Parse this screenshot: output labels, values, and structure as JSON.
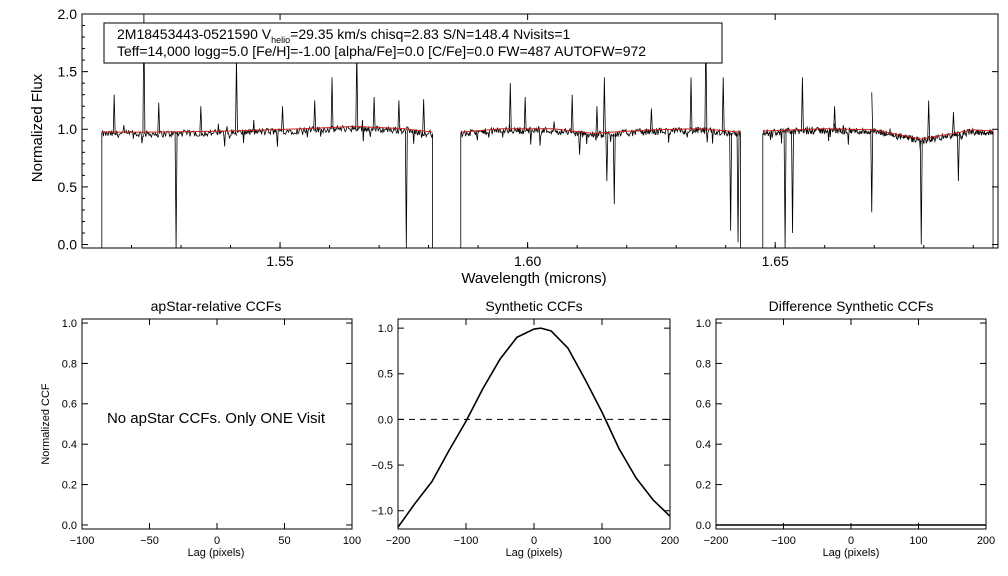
{
  "figure": {
    "spectrum_panel": {
      "ylabel": "Normalized Flux",
      "xlabel": "Wavelength (microns)",
      "xlim": [
        1.51,
        1.695
      ],
      "ylim": [
        -0.03,
        2.0
      ],
      "xticks": [
        1.55,
        1.6,
        1.65
      ],
      "xtick_labels": [
        "1.55",
        "1.60",
        "1.65"
      ],
      "yticks": [
        0.0,
        0.5,
        1.0,
        1.5,
        2.0
      ],
      "ytick_labels": [
        "0.0",
        "0.5",
        "1.0",
        "1.5",
        "2.0"
      ],
      "info_line1": "2M18453443-0521590  V",
      "info_line1_sub": "helio",
      "info_line1_rest": "=29.35 km/s  chisq=2.83  S/N=148.4  Nvisits=1",
      "info_line2": "Teff=14,000 logg=5.0 [Fe/H]=-1.00 [alpha/Fe]=0.0 [C/Fe]=0.0 FW=487 AUTOFW=972"
    },
    "ccf_panels": [
      {
        "title": "apStar-relative CCFs",
        "xlabel": "Lag (pixels)",
        "ylabel": "Normalized CCF",
        "xticks": [
          -100,
          -50,
          0,
          50,
          100
        ],
        "xtick_labels": [
          "−100",
          "−50",
          "0",
          "50",
          "100"
        ],
        "yticks": [
          0.0,
          0.2,
          0.4,
          0.6,
          0.8,
          1.0
        ],
        "ytick_labels": [
          "0.0",
          "0.2",
          "0.4",
          "0.6",
          "0.8",
          "1.0"
        ],
        "message": "No apStar CCFs.  Only ONE Visit"
      },
      {
        "title": "Synthetic CCFs",
        "xlabel": "Lag (pixels)",
        "xticks": [
          -200,
          -100,
          0,
          100,
          200
        ],
        "xtick_labels": [
          "−200",
          "−100",
          "0",
          "100",
          "200"
        ],
        "yticks": [
          -1.0,
          -0.5,
          0.0,
          0.5,
          1.0
        ],
        "ytick_labels": [
          "−1.0",
          "−0.5",
          "0.0",
          "0.5",
          "1.0"
        ]
      },
      {
        "title": "Difference Synthetic CCFs",
        "xlabel": "Lag (pixels)",
        "xticks": [
          -200,
          -100,
          0,
          100,
          200
        ],
        "xtick_labels": [
          "−200",
          "−100",
          "0",
          "100",
          "200"
        ],
        "yticks": [
          0.0,
          0.2,
          0.4,
          0.6,
          0.8,
          1.0
        ],
        "ytick_labels": [
          "0.0",
          "0.2",
          "0.4",
          "0.6",
          "0.8",
          "1.0"
        ]
      }
    ]
  },
  "chart_data": [
    {
      "type": "line",
      "title": "",
      "xlabel": "Wavelength (microns)",
      "ylabel": "Normalized Flux",
      "xlim": [
        1.51,
        1.695
      ],
      "ylim": [
        -0.03,
        2.0
      ],
      "series": [
        {
          "name": "observed spectrum",
          "color": "#000000",
          "chips": [
            [
              1.514,
              1.5808
            ],
            [
              1.5865,
              1.643
            ],
            [
              1.6475,
              1.694
            ]
          ],
          "continuum": [
            [
              1.514,
              0.96
            ],
            [
              1.525,
              0.96
            ],
            [
              1.54,
              0.97
            ],
            [
              1.555,
              0.99
            ],
            [
              1.565,
              1.01
            ],
            [
              1.575,
              0.99
            ],
            [
              1.5808,
              0.96
            ],
            [
              1.5865,
              0.96
            ],
            [
              1.595,
              0.99
            ],
            [
              1.605,
              0.99
            ],
            [
              1.613,
              0.95
            ],
            [
              1.625,
              0.98
            ],
            [
              1.635,
              0.99
            ],
            [
              1.643,
              0.96
            ],
            [
              1.6475,
              0.97
            ],
            [
              1.66,
              0.99
            ],
            [
              1.67,
              0.98
            ],
            [
              1.6795,
              0.9
            ],
            [
              1.69,
              0.98
            ],
            [
              1.694,
              0.97
            ]
          ],
          "spikes_up": [
            [
              1.5225,
              2.0
            ],
            [
              1.5165,
              1.3
            ],
            [
              1.5255,
              1.23
            ],
            [
              1.534,
              1.2
            ],
            [
              1.5412,
              1.62
            ],
            [
              1.5505,
              1.2
            ],
            [
              1.557,
              1.25
            ],
            [
              1.5605,
              1.45
            ],
            [
              1.5655,
              1.7
            ],
            [
              1.569,
              1.28
            ],
            [
              1.574,
              1.25
            ],
            [
              1.579,
              1.26
            ],
            [
              1.5965,
              1.4
            ],
            [
              1.5995,
              1.28
            ],
            [
              1.609,
              1.3
            ],
            [
              1.614,
              1.2
            ],
            [
              1.6155,
              1.45
            ],
            [
              1.625,
              1.18
            ],
            [
              1.633,
              1.45
            ],
            [
              1.636,
              1.85
            ],
            [
              1.6395,
              1.45
            ],
            [
              1.6555,
              1.45
            ],
            [
              1.662,
              1.2
            ],
            [
              1.6695,
              1.32
            ],
            [
              1.681,
              1.25
            ],
            [
              1.686,
              1.15
            ]
          ],
          "spikes_down": [
            [
              1.529,
              -0.05
            ],
            [
              1.5755,
              -0.05
            ],
            [
              1.6175,
              0.35
            ],
            [
              1.6105,
              0.78
            ],
            [
              1.616,
              0.55
            ],
            [
              1.641,
              0.12
            ],
            [
              1.6425,
              0.02
            ],
            [
              1.652,
              -0.05
            ],
            [
              1.6535,
              0.1
            ],
            [
              1.6695,
              0.28
            ],
            [
              1.6795,
              0.0
            ],
            [
              1.687,
              0.55
            ]
          ]
        },
        {
          "name": "model spectrum",
          "color": "#cc2222"
        }
      ]
    },
    {
      "type": "line",
      "title": "apStar-relative CCFs",
      "xlabel": "Lag (pixels)",
      "ylabel": "Normalized CCF",
      "xlim": [
        -100,
        100
      ],
      "ylim": [
        -0.02,
        1.02
      ],
      "series": []
    },
    {
      "type": "line",
      "title": "Synthetic CCFs",
      "xlabel": "Lag (pixels)",
      "xlim": [
        -200,
        200
      ],
      "ylim": [
        -1.2,
        1.1
      ],
      "series": [
        {
          "name": "synthetic ccf",
          "color": "#000000",
          "x": [
            -200,
            -175,
            -150,
            -125,
            -100,
            -75,
            -50,
            -25,
            0,
            10,
            25,
            50,
            75,
            100,
            125,
            150,
            175,
            200
          ],
          "y": [
            -1.18,
            -0.92,
            -0.68,
            -0.34,
            -0.02,
            0.34,
            0.66,
            0.9,
            0.99,
            1.0,
            0.97,
            0.78,
            0.44,
            0.08,
            -0.32,
            -0.64,
            -0.88,
            -1.06
          ]
        },
        {
          "name": "zero line",
          "style": "dashed",
          "x": [
            -200,
            200
          ],
          "y": [
            0,
            0
          ]
        }
      ]
    },
    {
      "type": "line",
      "title": "Difference Synthetic CCFs",
      "xlabel": "Lag (pixels)",
      "xlim": [
        -200,
        200
      ],
      "ylim": [
        -0.02,
        1.02
      ],
      "series": [
        {
          "name": "difference ccf",
          "x": [
            -200,
            200
          ],
          "y": [
            0.0,
            0.0
          ]
        }
      ]
    }
  ]
}
